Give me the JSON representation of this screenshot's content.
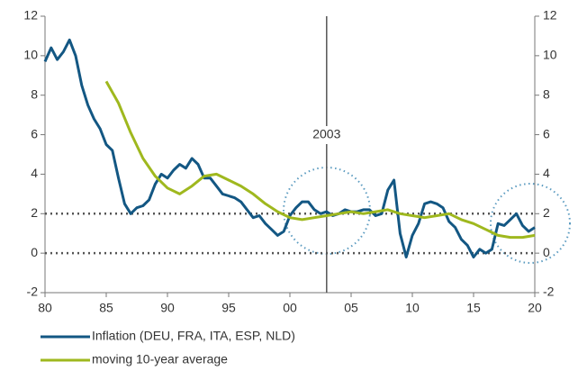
{
  "chart_data": {
    "type": "line",
    "xlim": [
      1980,
      2020
    ],
    "xticks": [
      {
        "value": 1980,
        "label": "80"
      },
      {
        "value": 1985,
        "label": "85"
      },
      {
        "value": 1990,
        "label": "90"
      },
      {
        "value": 1995,
        "label": "95"
      },
      {
        "value": 2000,
        "label": "00"
      },
      {
        "value": 2005,
        "label": "05"
      },
      {
        "value": 2010,
        "label": "10"
      },
      {
        "value": 2015,
        "label": "15"
      },
      {
        "value": 2020,
        "label": "20"
      }
    ],
    "ylim": [
      -2,
      12
    ],
    "yticks": [
      -2,
      0,
      2,
      4,
      6,
      8,
      10,
      12
    ],
    "y2lim": [
      -2,
      12
    ],
    "y2ticks": [
      -2,
      0,
      2,
      4,
      6,
      8,
      10,
      12
    ],
    "hlines": [
      0,
      2
    ],
    "annotation": {
      "x": 2003,
      "text": "2003"
    },
    "legend": "bottom-left",
    "series": [
      {
        "name": "Inflation (DEU, FRA, ITA, ESP, NLD)",
        "color": "#135783",
        "x": [
          1980,
          1980.5,
          1981,
          1981.5,
          1982,
          1982.5,
          1983,
          1983.5,
          1984,
          1984.5,
          1985,
          1985.5,
          1986,
          1986.5,
          1987,
          1987.5,
          1988,
          1988.5,
          1989,
          1989.5,
          1990,
          1990.5,
          1991,
          1991.5,
          1992,
          1992.5,
          1993,
          1993.5,
          1994,
          1994.5,
          1995,
          1995.5,
          1996,
          1996.5,
          1997,
          1997.5,
          1998,
          1998.5,
          1999,
          1999.5,
          2000,
          2000.5,
          2001,
          2001.5,
          2002,
          2002.5,
          2003,
          2003.5,
          2004,
          2004.5,
          2005,
          2005.5,
          2006,
          2006.5,
          2007,
          2007.5,
          2008,
          2008.5,
          2009,
          2009.5,
          2010,
          2010.5,
          2011,
          2011.5,
          2012,
          2012.5,
          2013,
          2013.5,
          2014,
          2014.5,
          2015,
          2015.5,
          2016,
          2016.5,
          2017,
          2017.5,
          2018,
          2018.5,
          2019,
          2019.5,
          2020
        ],
        "values": [
          9.7,
          10.4,
          9.8,
          10.2,
          10.8,
          10,
          8.5,
          7.5,
          6.8,
          6.3,
          5.5,
          5.2,
          3.8,
          2.5,
          2.0,
          2.3,
          2.4,
          2.7,
          3.5,
          4.0,
          3.8,
          4.2,
          4.5,
          4.3,
          4.8,
          4.5,
          3.8,
          3.8,
          3.4,
          3.0,
          2.9,
          2.8,
          2.6,
          2.2,
          1.8,
          1.9,
          1.5,
          1.2,
          0.9,
          1.1,
          1.9,
          2.3,
          2.6,
          2.6,
          2.2,
          2.0,
          2.1,
          1.9,
          2.0,
          2.2,
          2.1,
          2.1,
          2.2,
          2.2,
          1.9,
          2.0,
          3.2,
          3.7,
          1.0,
          -0.2,
          0.9,
          1.5,
          2.5,
          2.6,
          2.5,
          2.3,
          1.6,
          1.3,
          0.7,
          0.4,
          -0.2,
          0.2,
          0.0,
          0.2,
          1.5,
          1.4,
          1.7,
          2.0,
          1.4,
          1.1,
          1.3
        ]
      },
      {
        "name": "moving 10-year average",
        "color": "#9fb81e",
        "x": [
          1985,
          1986,
          1987,
          1988,
          1989,
          1990,
          1991,
          1992,
          1993,
          1994,
          1995,
          1996,
          1997,
          1998,
          1999,
          2000,
          2001,
          2002,
          2003,
          2004,
          2005,
          2006,
          2007,
          2008,
          2009,
          2010,
          2011,
          2012,
          2013,
          2014,
          2015,
          2016,
          2017,
          2018,
          2019,
          2020
        ],
        "values": [
          8.7,
          7.6,
          6.1,
          4.8,
          3.9,
          3.3,
          3.0,
          3.4,
          3.9,
          4.0,
          3.7,
          3.4,
          3.0,
          2.5,
          2.1,
          1.8,
          1.7,
          1.8,
          1.9,
          2.0,
          2.1,
          2.0,
          2.1,
          2.2,
          2.0,
          1.9,
          1.8,
          1.9,
          2.0,
          1.7,
          1.5,
          1.2,
          0.9,
          0.8,
          0.8,
          0.9
        ]
      }
    ]
  }
}
